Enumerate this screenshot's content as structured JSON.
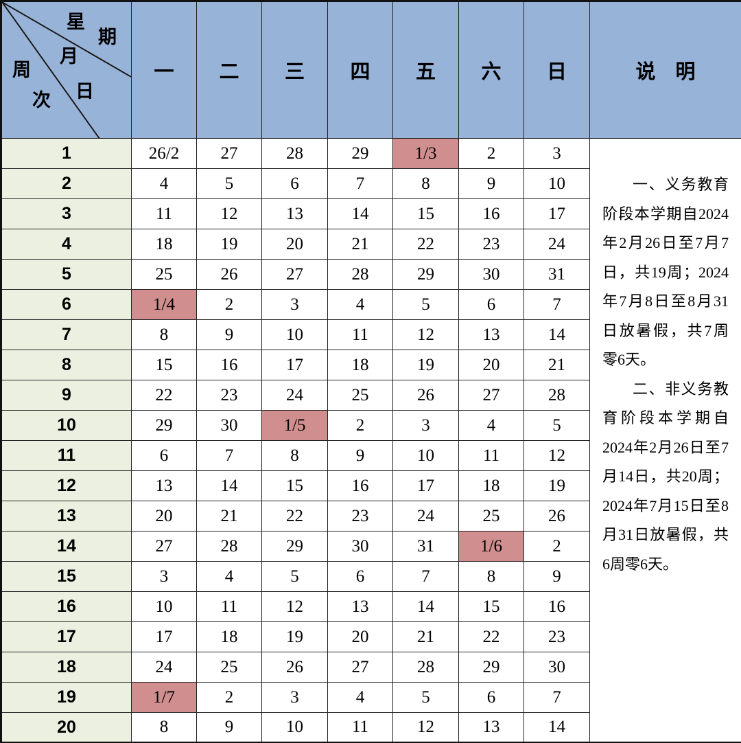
{
  "colors": {
    "header-blue": "#98B3D8",
    "weekcol-green": "#ECF0E0",
    "highlight-pink": "#D08E8F",
    "grid-line": "#222222"
  },
  "corner": {
    "weekday_char_1": "星",
    "weekday_char_2": "期",
    "month_char": "月",
    "day_char": "日",
    "week_char_1": "周",
    "week_char_2": "次"
  },
  "weekday_headers": [
    "一",
    "二",
    "三",
    "四",
    "五",
    "六",
    "日"
  ],
  "notes_header": "说　明",
  "weeks": [
    {
      "num": "1",
      "days": [
        "26/2",
        "27",
        "28",
        "29",
        "1/3",
        "2",
        "3"
      ],
      "highlight": 4
    },
    {
      "num": "2",
      "days": [
        "4",
        "5",
        "6",
        "7",
        "8",
        "9",
        "10"
      ],
      "highlight": -1
    },
    {
      "num": "3",
      "days": [
        "11",
        "12",
        "13",
        "14",
        "15",
        "16",
        "17"
      ],
      "highlight": -1
    },
    {
      "num": "4",
      "days": [
        "18",
        "19",
        "20",
        "21",
        "22",
        "23",
        "24"
      ],
      "highlight": -1
    },
    {
      "num": "5",
      "days": [
        "25",
        "26",
        "27",
        "28",
        "29",
        "30",
        "31"
      ],
      "highlight": -1
    },
    {
      "num": "6",
      "days": [
        "1/4",
        "2",
        "3",
        "4",
        "5",
        "6",
        "7"
      ],
      "highlight": 0
    },
    {
      "num": "7",
      "days": [
        "8",
        "9",
        "10",
        "11",
        "12",
        "13",
        "14"
      ],
      "highlight": -1
    },
    {
      "num": "8",
      "days": [
        "15",
        "16",
        "17",
        "18",
        "19",
        "20",
        "21"
      ],
      "highlight": -1
    },
    {
      "num": "9",
      "days": [
        "22",
        "23",
        "24",
        "25",
        "26",
        "27",
        "28"
      ],
      "highlight": -1
    },
    {
      "num": "10",
      "days": [
        "29",
        "30",
        "1/5",
        "2",
        "3",
        "4",
        "5"
      ],
      "highlight": 2
    },
    {
      "num": "11",
      "days": [
        "6",
        "7",
        "8",
        "9",
        "10",
        "11",
        "12"
      ],
      "highlight": -1
    },
    {
      "num": "12",
      "days": [
        "13",
        "14",
        "15",
        "16",
        "17",
        "18",
        "19"
      ],
      "highlight": -1
    },
    {
      "num": "13",
      "days": [
        "20",
        "21",
        "22",
        "23",
        "24",
        "25",
        "26"
      ],
      "highlight": -1
    },
    {
      "num": "14",
      "days": [
        "27",
        "28",
        "29",
        "30",
        "31",
        "1/6",
        "2"
      ],
      "highlight": 5
    },
    {
      "num": "15",
      "days": [
        "3",
        "4",
        "5",
        "6",
        "7",
        "8",
        "9"
      ],
      "highlight": -1
    },
    {
      "num": "16",
      "days": [
        "10",
        "11",
        "12",
        "13",
        "14",
        "15",
        "16"
      ],
      "highlight": -1
    },
    {
      "num": "17",
      "days": [
        "17",
        "18",
        "19",
        "20",
        "21",
        "22",
        "23"
      ],
      "highlight": -1
    },
    {
      "num": "18",
      "days": [
        "24",
        "25",
        "26",
        "27",
        "28",
        "29",
        "30"
      ],
      "highlight": -1
    },
    {
      "num": "19",
      "days": [
        "1/7",
        "2",
        "3",
        "4",
        "5",
        "6",
        "7"
      ],
      "highlight": 0
    },
    {
      "num": "20",
      "days": [
        "8",
        "9",
        "10",
        "11",
        "12",
        "13",
        "14"
      ],
      "highlight": -1
    }
  ],
  "notes": [
    "一、义务教育阶段本学期自2024年2月26日至7月7日，共19周；2024年7月8日至8月31日放暑假，共7周零6天。",
    "二、非义务教育阶段本学期自2024年2月26日至7月14日，共20周；2024年7月15日至8月31日放暑假，共6周零6天。"
  ]
}
